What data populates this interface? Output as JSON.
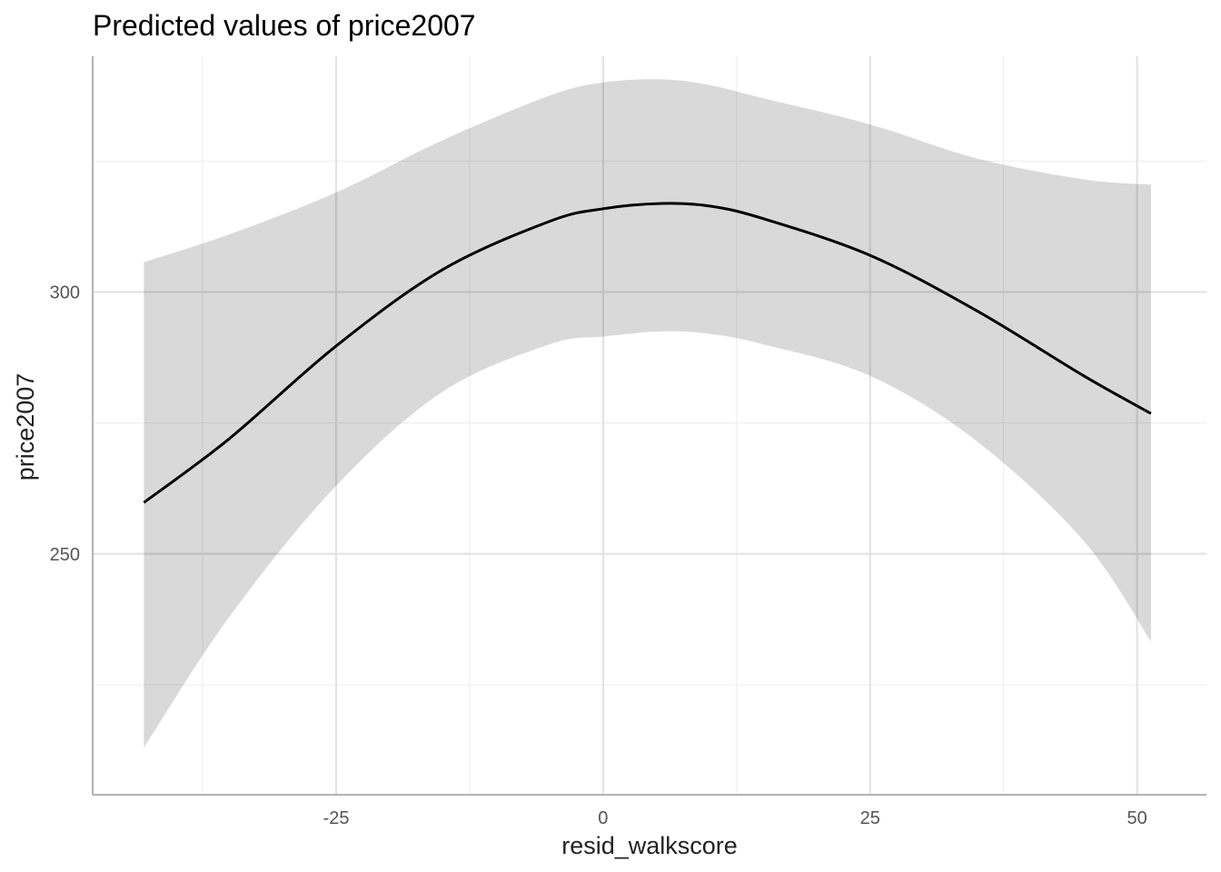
{
  "chart_data": {
    "type": "line",
    "title": "Predicted values of price2007",
    "xlabel": "resid_walkscore",
    "ylabel": "price2007",
    "xlim": [
      -47.8,
      56.5
    ],
    "ylim": [
      204,
      345
    ],
    "x_ticks": [
      -25,
      0,
      25,
      50
    ],
    "x_tick_labels": [
      "-25",
      "0",
      "25",
      "50"
    ],
    "x_minor_ticks": [
      -37.5,
      -12.5,
      12.5,
      37.5
    ],
    "y_ticks": [
      250,
      300
    ],
    "y_tick_labels": [
      "250",
      "300"
    ],
    "y_minor_ticks": [
      225,
      275,
      325
    ],
    "grid": true,
    "legend": "none",
    "colors": {
      "line": "#000000",
      "ribbon": "#d9d9d9",
      "grid_major": "#e3e3e3",
      "grid_minor": "#efefef",
      "axis": "#b3b3b3"
    },
    "series": [
      {
        "x": [
          -43,
          -35,
          -25,
          -15,
          -5,
          0,
          5.5,
          10,
          15,
          25,
          35,
          45,
          51.3
        ],
        "y": [
          259.8,
          272,
          289.7,
          304.3,
          313.5,
          315.9,
          316.9,
          316.4,
          314,
          307,
          296.4,
          284,
          276.8
        ],
        "lower": [
          213,
          238,
          263,
          281,
          290,
          291.5,
          292.5,
          292,
          290,
          284,
          271.5,
          252.5,
          233.3
        ],
        "upper": [
          305.7,
          311,
          319,
          329,
          337.5,
          340,
          340.6,
          339.5,
          337,
          332,
          325.5,
          321.5,
          320.5
        ]
      }
    ]
  }
}
